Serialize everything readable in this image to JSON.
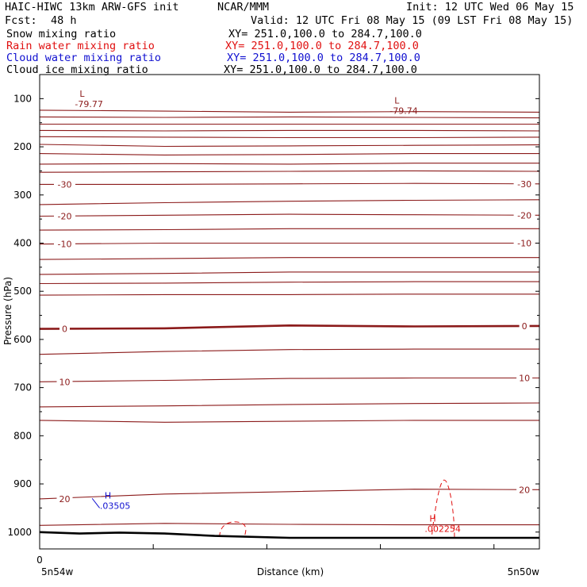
{
  "header": {
    "model": "HAIC-HIWC 13km ARW-GFS init",
    "center": "NCAR/MMM",
    "init": "Init: 12 UTC Wed 06 May 15",
    "fcst_label": "Fcst:",
    "fcst_value": "48 h",
    "valid": "Valid: 12 UTC Fri 08 May 15 (09 LST Fri 08 May 15)"
  },
  "fields": [
    {
      "name": "Snow mixing ratio",
      "xy": "XY= 251.0,100.0 to 284.7,100.0",
      "color": "#000000"
    },
    {
      "name": "Rain water mixing ratio",
      "xy": "XY= 251.0,100.0 to 284.7,100.0",
      "color": "#e01010"
    },
    {
      "name": "Cloud water mixing ratio",
      "xy": "XY= 251.0,100.0 to 284.7,100.0",
      "color": "#1010d0"
    },
    {
      "name": "Cloud ice mixing ratio",
      "xy": "XY= 251.0,100.0 to 284.7,100.0",
      "color": "#000000"
    }
  ],
  "chart_data": {
    "type": "line",
    "ylabel": "Pressure (hPa)",
    "xlabel": "Distance (km)",
    "x_start_label": "5n54w",
    "x_end_label": "5n50w",
    "x_zero_label": "0",
    "y_ticks": [
      100,
      200,
      300,
      400,
      500,
      600,
      700,
      800,
      900,
      1000
    ],
    "y_range": [
      50,
      1035
    ],
    "x_range": [
      0,
      100
    ],
    "contour_color": "#8b1a1a",
    "terrain": [
      [
        0,
        1000
      ],
      [
        8,
        1003
      ],
      [
        16,
        1001
      ],
      [
        25,
        1003
      ],
      [
        35,
        1008
      ],
      [
        50,
        1012
      ],
      [
        100,
        1012
      ]
    ],
    "isotherms": [
      {
        "label": "",
        "p": [
          124,
          126,
          128,
          127,
          128
        ]
      },
      {
        "label": "",
        "p": [
          138,
          139,
          138,
          139,
          140
        ]
      },
      {
        "label": "",
        "p": [
          153,
          153,
          153,
          153,
          153
        ]
      },
      {
        "label": "",
        "p": [
          166,
          167,
          166,
          166,
          167
        ]
      },
      {
        "label": "",
        "p": [
          179,
          180,
          181,
          181,
          180
        ]
      },
      {
        "label": "",
        "p": [
          195,
          199,
          198,
          197,
          196
        ]
      },
      {
        "label": "",
        "p": [
          214,
          217,
          216,
          214,
          214
        ]
      },
      {
        "label": "",
        "p": [
          236,
          235,
          236,
          234,
          234
        ]
      },
      {
        "label": "",
        "p": [
          253,
          252,
          251,
          250,
          251
        ]
      },
      {
        "label": "-30",
        "p": [
          278,
          278,
          277,
          276,
          277
        ]
      },
      {
        "label": "",
        "p": [
          320,
          316,
          313,
          311,
          310
        ]
      },
      {
        "label": "-20",
        "p": [
          344,
          342,
          340,
          341,
          342
        ]
      },
      {
        "label": "",
        "p": [
          373,
          372,
          370,
          370,
          370
        ]
      },
      {
        "label": "-10",
        "p": [
          402,
          400,
          400,
          400,
          400
        ]
      },
      {
        "label": "",
        "p": [
          434,
          432,
          430,
          430,
          430
        ]
      },
      {
        "label": "",
        "p": [
          465,
          463,
          460,
          460,
          460
        ]
      },
      {
        "label": "",
        "p": [
          484,
          483,
          481,
          480,
          480
        ]
      },
      {
        "label": "",
        "p": [
          508,
          507,
          507,
          506,
          506
        ]
      },
      {
        "label": "0",
        "p": [
          578,
          577,
          571,
          573,
          572
        ],
        "bold": true
      },
      {
        "label": "",
        "p": [
          631,
          625,
          621,
          620,
          620
        ]
      },
      {
        "label": "10",
        "p": [
          688,
          685,
          681,
          680,
          680
        ]
      },
      {
        "label": "",
        "p": [
          740,
          738,
          735,
          733,
          732
        ]
      },
      {
        "label": "",
        "p": [
          768,
          772,
          770,
          768,
          768
        ]
      },
      {
        "label": "20",
        "p": [
          931,
          921,
          916,
          911,
          912
        ]
      },
      {
        "label": "",
        "p": [
          986,
          982,
          984,
          985,
          985
        ]
      }
    ],
    "annotations": [
      {
        "type": "low",
        "letter": "L",
        "value": "-79.77",
        "x": 8,
        "p": 96
      },
      {
        "type": "low",
        "letter": "L",
        "value": "-79.74",
        "x": 71,
        "p": 110
      },
      {
        "type": "high",
        "letter": "H",
        "value": ".03505",
        "x": 13,
        "p": 930,
        "color": "#1010d0"
      },
      {
        "type": "high",
        "letter": "H",
        "value": ".002254",
        "x": 78,
        "p": 978,
        "color": "#e01010"
      }
    ]
  }
}
